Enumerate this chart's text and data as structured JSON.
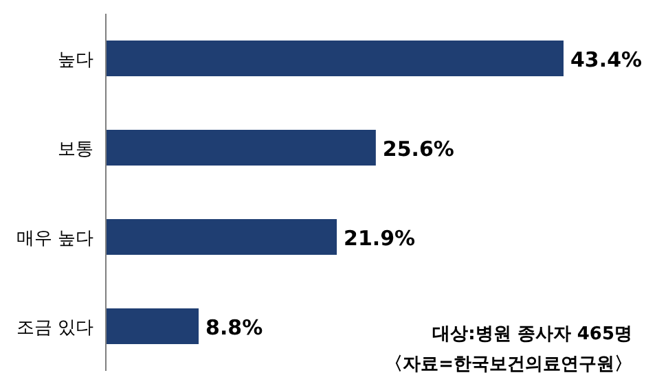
{
  "chart_data": {
    "type": "bar",
    "orientation": "horizontal",
    "categories": [
      "높다",
      "보통",
      "매우 높다",
      "조금 있다"
    ],
    "values": [
      43.4,
      25.6,
      21.9,
      8.8
    ],
    "color": "#1f3e72",
    "value_labels": [
      "43.4%",
      "25.6%",
      "21.9%",
      "8.8%"
    ],
    "annotations": [
      "대상:병원 종사자 465명",
      "〈자료=한국보건의료연구원〉"
    ]
  }
}
